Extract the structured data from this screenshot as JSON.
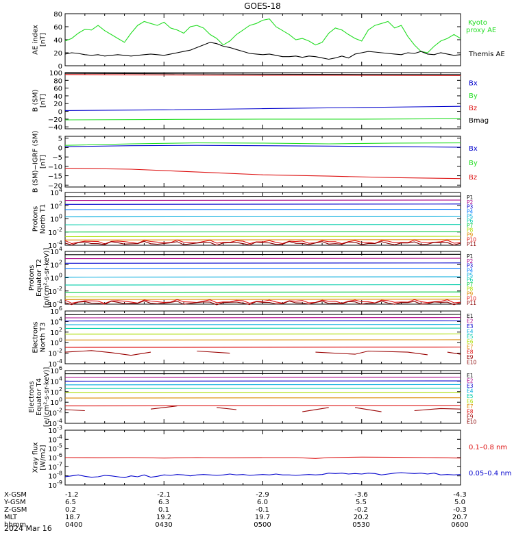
{
  "title": "GOES-18",
  "date_label": "2024 Mar 16",
  "footer": {
    "row_labels": [
      "X-GSM",
      "Y-GSM",
      "Z-GSM",
      "MLT",
      "hhmm"
    ],
    "columns": [
      [
        "-1.2",
        "6.5",
        "0.2",
        "18.7",
        "0400"
      ],
      [
        "-2.1",
        "6.3",
        "0.1",
        "19.2",
        "0430"
      ],
      [
        "-2.9",
        "6.0",
        "-0.1",
        "19.7",
        "0500"
      ],
      [
        "-3.6",
        "5.5",
        "-0.2",
        "20.2",
        "0530"
      ],
      [
        "-4.3",
        "5.0",
        "-0.3",
        "20.7",
        "0600"
      ]
    ]
  },
  "chart_data": [
    {
      "type": "line",
      "ylabel": [
        "AE index",
        "[nT]"
      ],
      "ylim": [
        0,
        80
      ],
      "yticks": [
        "0",
        "20",
        "40",
        "60",
        "80"
      ],
      "xlim": [
        0,
        120
      ],
      "xtick_labels": [
        "0400",
        "0430",
        "0500",
        "0530",
        "0600"
      ],
      "series": [
        {
          "name": "Kyoto proxy AE",
          "color": "#22dd22",
          "x": [
            0,
            2,
            4,
            6,
            8,
            10,
            12,
            14,
            16,
            18,
            20,
            22,
            24,
            26,
            28,
            30,
            32,
            34,
            36,
            38,
            40,
            42,
            44,
            46,
            48,
            50,
            52,
            54,
            56,
            58,
            60,
            62,
            64,
            66,
            68,
            70,
            72,
            74,
            76,
            78,
            80,
            82,
            84,
            86,
            88,
            90,
            92,
            94,
            96,
            98,
            100,
            102,
            104,
            106,
            108,
            110,
            112,
            114,
            116,
            118,
            120
          ],
          "y": [
            38,
            42,
            50,
            56,
            55,
            62,
            54,
            48,
            42,
            36,
            50,
            62,
            68,
            65,
            62,
            67,
            58,
            55,
            50,
            60,
            62,
            58,
            48,
            42,
            32,
            38,
            48,
            55,
            62,
            65,
            70,
            72,
            60,
            54,
            48,
            40,
            42,
            38,
            32,
            36,
            50,
            58,
            55,
            48,
            42,
            38,
            55,
            62,
            65,
            68,
            58,
            62,
            45,
            32,
            22,
            20,
            30,
            38,
            42,
            48,
            42
          ]
        },
        {
          "name": "Themis AE",
          "color": "#000000",
          "x": [
            0,
            2,
            4,
            6,
            8,
            10,
            12,
            14,
            16,
            18,
            20,
            22,
            24,
            26,
            28,
            30,
            32,
            34,
            36,
            38,
            40,
            42,
            44,
            46,
            48,
            50,
            52,
            54,
            56,
            58,
            60,
            62,
            64,
            66,
            68,
            70,
            72,
            74,
            76,
            78,
            80,
            82,
            84,
            86,
            88,
            90,
            92,
            94,
            96,
            98,
            100,
            102,
            104,
            106,
            108,
            110,
            112,
            114,
            116,
            118,
            120
          ],
          "y": [
            18,
            20,
            19,
            17,
            16,
            17,
            15,
            16,
            17,
            16,
            15,
            16,
            17,
            18,
            17,
            16,
            18,
            20,
            22,
            24,
            28,
            32,
            36,
            34,
            30,
            28,
            25,
            22,
            19,
            18,
            17,
            18,
            16,
            14,
            14,
            15,
            13,
            15,
            14,
            12,
            10,
            12,
            15,
            12,
            18,
            20,
            22,
            21,
            20,
            19,
            18,
            17,
            20,
            19,
            22,
            18,
            17,
            20,
            18,
            16,
            17
          ]
        }
      ]
    },
    {
      "type": "line",
      "ylabel": [
        "B (SM)",
        "[nT]"
      ],
      "ylim": [
        -45,
        100
      ],
      "yticks": [
        "100",
        "80",
        "60",
        "40",
        "20",
        "0",
        "−20",
        "−40"
      ],
      "ytick_values": [
        100,
        80,
        60,
        40,
        20,
        0,
        -20,
        -40
      ],
      "series": [
        {
          "name": "Bx",
          "color": "#0000cc",
          "x": [
            0,
            30,
            60,
            90,
            120
          ],
          "y": [
            2,
            4,
            7,
            10,
            13
          ]
        },
        {
          "name": "By",
          "color": "#22dd22",
          "x": [
            0,
            30,
            60,
            90,
            120
          ],
          "y": [
            -22,
            -21,
            -20,
            -20,
            -19
          ]
        },
        {
          "name": "Bz",
          "color": "#dd1111",
          "x": [
            0,
            30,
            60,
            90,
            120
          ],
          "y": [
            95,
            94,
            93,
            93,
            92
          ]
        },
        {
          "name": "Bmag",
          "color": "#000000",
          "x": [
            0,
            30,
            60,
            90,
            120
          ],
          "y": [
            98,
            97,
            96,
            95,
            95
          ]
        }
      ]
    },
    {
      "type": "line",
      "ylabel": [
        "B (SM)−IGRF (SM)",
        "[nT]"
      ],
      "ylim": [
        -21,
        6
      ],
      "yticks": [
        "5",
        "0",
        "−5",
        "−10",
        "−15",
        "−20"
      ],
      "ytick_values": [
        5,
        0,
        -5,
        -10,
        -15,
        -20
      ],
      "series": [
        {
          "name": "Bx",
          "color": "#0000cc",
          "x": [
            0,
            20,
            40,
            60,
            80,
            100,
            120
          ],
          "y": [
            0.5,
            1.0,
            1.2,
            1.0,
            0.8,
            0.5,
            0.2
          ]
        },
        {
          "name": "By",
          "color": "#22dd22",
          "x": [
            0,
            20,
            40,
            60,
            80,
            100,
            120
          ],
          "y": [
            1.2,
            2.0,
            2.5,
            2.4,
            2.0,
            2.4,
            2.5
          ]
        },
        {
          "name": "Bz",
          "color": "#dd1111",
          "x": [
            0,
            20,
            40,
            60,
            80,
            100,
            120
          ],
          "y": [
            -11,
            -11.5,
            -13,
            -14.5,
            -15.2,
            -16,
            -16.5
          ]
        }
      ]
    },
    {
      "type": "line",
      "scale": "log",
      "ylabel": [
        "Protons",
        "North T1"
      ],
      "ylim_exp": [
        -4,
        4
      ],
      "yticks": [
        "10^4",
        "10^2",
        "10^0",
        "10^-2",
        "10^-4"
      ],
      "series": [
        {
          "name": "P1",
          "color": "#000000",
          "level": 3.4
        },
        {
          "name": "P2",
          "color": "#aa0088",
          "level": 2.8
        },
        {
          "name": "P3",
          "color": "#0000cc",
          "level": 2.2
        },
        {
          "name": "P4",
          "color": "#0077ff",
          "level": 1.4
        },
        {
          "name": "P5",
          "color": "#00aadd",
          "level": 0.3
        },
        {
          "name": "P6",
          "color": "#00ccaa",
          "level": -0.9
        },
        {
          "name": "P7",
          "color": "#00cc44",
          "level": -2.0
        },
        {
          "name": "P8",
          "color": "#aadd00",
          "level": -2.7
        },
        {
          "name": "P9",
          "color": "#dd8800",
          "level": -3.2
        },
        {
          "name": "P10",
          "color": "#dd1111",
          "level": -3.5,
          "noisy": true
        },
        {
          "name": "P11",
          "color": "#880000",
          "level": -3.7,
          "noisy": true
        }
      ]
    },
    {
      "type": "line",
      "scale": "log",
      "ylabel": [
        "Protons",
        "Equator T2",
        "[p/(cm²-s-sr-keV)]"
      ],
      "ylim_exp": [
        -4,
        4
      ],
      "yticks": [
        "10^4",
        "10^2",
        "10^0",
        "10^-2",
        "10^-4"
      ],
      "series": [
        {
          "name": "P1",
          "color": "#000000",
          "level": 3.5
        },
        {
          "name": "P2",
          "color": "#aa0088",
          "level": 2.9
        },
        {
          "name": "P3",
          "color": "#0000cc",
          "level": 2.2
        },
        {
          "name": "P4",
          "color": "#0077ff",
          "level": 1.4
        },
        {
          "name": "P5",
          "color": "#00aadd",
          "level": 0.1
        },
        {
          "name": "P6",
          "color": "#00ccaa",
          "level": -1.1
        },
        {
          "name": "P7",
          "color": "#00cc44",
          "level": -2.2
        },
        {
          "name": "P8",
          "color": "#aadd00",
          "level": -2.9
        },
        {
          "name": "P9",
          "color": "#dd8800",
          "level": -3.3
        },
        {
          "name": "P10",
          "color": "#dd1111",
          "level": -3.6,
          "noisy": true
        },
        {
          "name": "P11",
          "color": "#880000",
          "level": -3.8,
          "noisy": true
        }
      ]
    },
    {
      "type": "line",
      "scale": "log",
      "ylabel": [
        "Electrons",
        "North T3"
      ],
      "ylim_exp": [
        -4,
        6
      ],
      "yticks": [
        "10^6",
        "10^4",
        "10^2",
        "10^0",
        "10^-2",
        "10^-4"
      ],
      "series": [
        {
          "name": "E1",
          "color": "#000000",
          "level": 5.3
        },
        {
          "name": "E2",
          "color": "#aa0088",
          "level": 4.7
        },
        {
          "name": "E3",
          "color": "#0000cc",
          "level": 4.1
        },
        {
          "name": "E4",
          "color": "#00aadd",
          "level": 3.4
        },
        {
          "name": "E5",
          "color": "#00ccaa",
          "level": 2.7
        },
        {
          "name": "E6",
          "color": "#aadd00",
          "level": 1.6
        },
        {
          "name": "E7",
          "color": "#dd8800",
          "level": 0.5
        },
        {
          "name": "E8",
          "color": "#dd1111",
          "level": -0.9
        },
        {
          "name": "E9",
          "color": "#990000",
          "segments": [
            [
              0,
              -1.8
            ],
            [
              8,
              -1.5
            ],
            [
              14,
              -1.9
            ],
            [
              20,
              -2.4
            ],
            [
              26,
              -1.8
            ],
            [
              -1,
              0
            ],
            [
              40,
              -1.6
            ],
            [
              50,
              -2.0
            ],
            [
              -1,
              0
            ],
            [
              76,
              -1.8
            ],
            [
              88,
              -2.2
            ],
            [
              92,
              -1.6
            ],
            [
              104,
              -1.8
            ],
            [
              110,
              -2.3
            ],
            [
              -1,
              0
            ],
            [
              116,
              -1.8
            ],
            [
              120,
              -2.2
            ]
          ]
        },
        {
          "name": "E10",
          "color": "#880000",
          "level": null
        }
      ]
    },
    {
      "type": "line",
      "scale": "log",
      "ylabel": [
        "Electrons",
        "Equator T4",
        "[e/(cm²-s-sr-keV)]"
      ],
      "ylim_exp": [
        -4,
        6
      ],
      "yticks": [
        "10^6",
        "10^4",
        "10^2",
        "10^0",
        "10^-2",
        "10^-4"
      ],
      "series": [
        {
          "name": "E1",
          "color": "#000000",
          "level": 5.4
        },
        {
          "name": "E2",
          "color": "#aa0088",
          "level": 4.7
        },
        {
          "name": "E3",
          "color": "#0000cc",
          "level": 4.0
        },
        {
          "name": "E4",
          "color": "#00aadd",
          "level": 3.3
        },
        {
          "name": "E5",
          "color": "#00ccaa",
          "level": 2.6
        },
        {
          "name": "E6",
          "color": "#aadd00",
          "level": 1.8
        },
        {
          "name": "E7",
          "color": "#dd8800",
          "level": 0.8
        },
        {
          "name": "E8",
          "color": "#dd1111",
          "level": -0.7
        },
        {
          "name": "E9",
          "color": "#990000",
          "segments": [
            [
              0,
              -1.4
            ],
            [
              6,
              -1.6
            ],
            [
              -1,
              0
            ],
            [
              26,
              -1.3
            ],
            [
              34,
              -0.7
            ],
            [
              -1,
              0
            ],
            [
              46,
              -1.0
            ],
            [
              52,
              -1.4
            ],
            [
              -1,
              0
            ],
            [
              72,
              -1.8
            ],
            [
              80,
              -1.0
            ],
            [
              -1,
              0
            ],
            [
              88,
              -1.0
            ],
            [
              96,
              -1.8
            ],
            [
              -1,
              0
            ],
            [
              106,
              -1.6
            ],
            [
              114,
              -1.2
            ],
            [
              120,
              -1.3
            ]
          ]
        },
        {
          "name": "E10",
          "color": "#880000",
          "level": null
        }
      ]
    },
    {
      "type": "line",
      "scale": "log",
      "ylabel": [
        "Xray flux",
        "[W/m2]"
      ],
      "ylim_exp": [
        -9,
        -3
      ],
      "yticks": [
        "10^-3",
        "10^-4",
        "10^-5",
        "10^-6",
        "10^-7",
        "10^-8",
        "10^-9"
      ],
      "series": [
        {
          "name": "0.1–0.8 nm",
          "color": "#dd1111",
          "x": [
            0,
            10,
            20,
            30,
            40,
            50,
            60,
            70,
            76,
            80,
            90,
            100,
            110,
            120
          ],
          "y": [
            -6.0,
            -6.02,
            -6.0,
            -6.05,
            -6.0,
            -6.03,
            -6.0,
            -6.0,
            -6.1,
            -6.0,
            -5.95,
            -5.97,
            -6.0,
            -6.05
          ]
        },
        {
          "name": "0.05–0.4 nm",
          "color": "#0000cc",
          "x": [
            0,
            2,
            4,
            6,
            8,
            10,
            12,
            14,
            16,
            18,
            20,
            22,
            24,
            26,
            28,
            30,
            32,
            34,
            36,
            38,
            40,
            42,
            44,
            46,
            48,
            50,
            52,
            54,
            56,
            58,
            60,
            62,
            64,
            66,
            68,
            70,
            72,
            74,
            76,
            78,
            80,
            82,
            84,
            86,
            88,
            90,
            92,
            94,
            96,
            98,
            100,
            102,
            104,
            106,
            108,
            110,
            112,
            114,
            116,
            118,
            120
          ],
          "y": [
            -8.1,
            -8.0,
            -7.9,
            -8.05,
            -8.15,
            -8.1,
            -7.95,
            -8.0,
            -8.1,
            -8.2,
            -8.0,
            -8.1,
            -7.9,
            -8.15,
            -8.05,
            -7.9,
            -7.95,
            -7.85,
            -7.9,
            -8.0,
            -7.9,
            -7.85,
            -7.9,
            -7.95,
            -7.9,
            -7.8,
            -7.9,
            -7.85,
            -7.95,
            -7.9,
            -7.85,
            -7.9,
            -7.8,
            -7.9,
            -7.9,
            -7.95,
            -7.9,
            -7.85,
            -7.9,
            -7.85,
            -7.7,
            -7.75,
            -7.7,
            -7.8,
            -7.75,
            -7.8,
            -7.7,
            -7.75,
            -7.9,
            -7.8,
            -7.7,
            -7.65,
            -7.7,
            -7.75,
            -7.7,
            -7.8,
            -7.7,
            -7.9,
            -7.85,
            -7.9,
            -7.85
          ]
        }
      ]
    }
  ]
}
